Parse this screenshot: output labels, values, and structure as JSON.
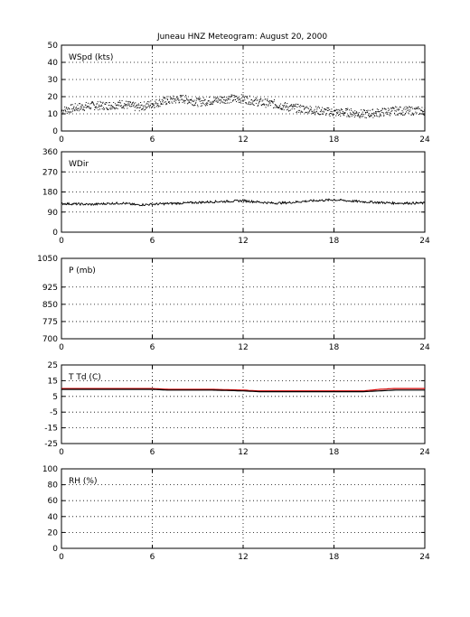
{
  "figure": {
    "title": "Juneau HNZ Meteogram:     August 20, 2000"
  },
  "chart_data": [
    {
      "type": "scatter",
      "id": "wspd",
      "label": "WSpd (kts)",
      "xlim": [
        0,
        24
      ],
      "ylim": [
        0,
        50
      ],
      "xticks": [
        "0",
        "6",
        "12",
        "18",
        "24"
      ],
      "yticks": [
        "0",
        "10",
        "20",
        "30",
        "40",
        "50"
      ],
      "grid": true,
      "series": [
        {
          "color": "#000000",
          "x": [
            0,
            1,
            2,
            3,
            4,
            5,
            6,
            7,
            8,
            9,
            10,
            11,
            12,
            13,
            14,
            15,
            16,
            17,
            18,
            19,
            20,
            21,
            22,
            23,
            24
          ],
          "y": [
            12,
            14,
            15,
            15,
            16,
            14,
            16,
            18,
            19,
            17,
            18,
            19,
            19,
            17,
            16,
            14,
            13,
            12,
            11,
            11,
            10,
            11,
            12,
            12,
            12
          ]
        }
      ]
    },
    {
      "type": "line",
      "id": "wdir",
      "label": "WDir",
      "xlim": [
        0,
        24
      ],
      "ylim": [
        0,
        360
      ],
      "xticks": [
        "0",
        "6",
        "12",
        "18",
        "24"
      ],
      "yticks": [
        "0",
        "90",
        "180",
        "270",
        "360"
      ],
      "grid": true,
      "series": [
        {
          "color": "#000000",
          "x": [
            0,
            1,
            2,
            3,
            4,
            5,
            6,
            7,
            8,
            9,
            10,
            11,
            12,
            13,
            14,
            15,
            16,
            17,
            18,
            19,
            20,
            21,
            22,
            23,
            24
          ],
          "y": [
            128,
            126,
            124,
            128,
            130,
            122,
            125,
            128,
            130,
            133,
            136,
            138,
            141,
            135,
            130,
            132,
            138,
            142,
            145,
            140,
            136,
            133,
            130,
            130,
            130
          ]
        }
      ]
    },
    {
      "type": "line",
      "id": "pres",
      "label": "P (mb)",
      "xlim": [
        0,
        24
      ],
      "ylim": [
        700,
        1050
      ],
      "xticks": [
        "0",
        "6",
        "12",
        "18",
        "24"
      ],
      "yticks": [
        "700",
        "775",
        "850",
        "925",
        "1050"
      ],
      "ytick_values": [
        700,
        775,
        850,
        925,
        1050
      ],
      "grid": true,
      "series": []
    },
    {
      "type": "line",
      "id": "temp",
      "label": "T Td (C)",
      "xlim": [
        0,
        24
      ],
      "ylim": [
        -25,
        25
      ],
      "xticks": [
        "0",
        "6",
        "12",
        "18",
        "24"
      ],
      "yticks": [
        "-25",
        "-15",
        "-5",
        "5",
        "15",
        "25"
      ],
      "grid": true,
      "series": [
        {
          "color": "#d40000",
          "x": [
            0,
            2,
            4,
            6,
            7,
            8,
            10,
            12,
            13,
            14,
            16,
            18,
            20,
            21,
            22,
            23,
            24
          ],
          "y": [
            10,
            10,
            10,
            10,
            9.5,
            9.5,
            9.5,
            9,
            8.5,
            8.5,
            8.5,
            8.5,
            8.5,
            9.5,
            10,
            10,
            10
          ]
        },
        {
          "color": "#000000",
          "x": [
            0,
            2,
            4,
            6,
            7,
            8,
            10,
            12,
            13,
            14,
            16,
            18,
            20,
            21,
            22,
            23,
            24
          ],
          "y": [
            9.5,
            9.5,
            9.5,
            9.5,
            9,
            9,
            9,
            8.5,
            8,
            8,
            8,
            8,
            8,
            8.5,
            9,
            9,
            9
          ]
        }
      ]
    },
    {
      "type": "line",
      "id": "rh",
      "label": "RH (%)",
      "xlim": [
        0,
        24
      ],
      "ylim": [
        0,
        100
      ],
      "xticks": [
        "0",
        "6",
        "12",
        "18",
        "24"
      ],
      "yticks": [
        "0",
        "20",
        "40",
        "60",
        "80",
        "100"
      ],
      "grid": true,
      "series": []
    }
  ]
}
